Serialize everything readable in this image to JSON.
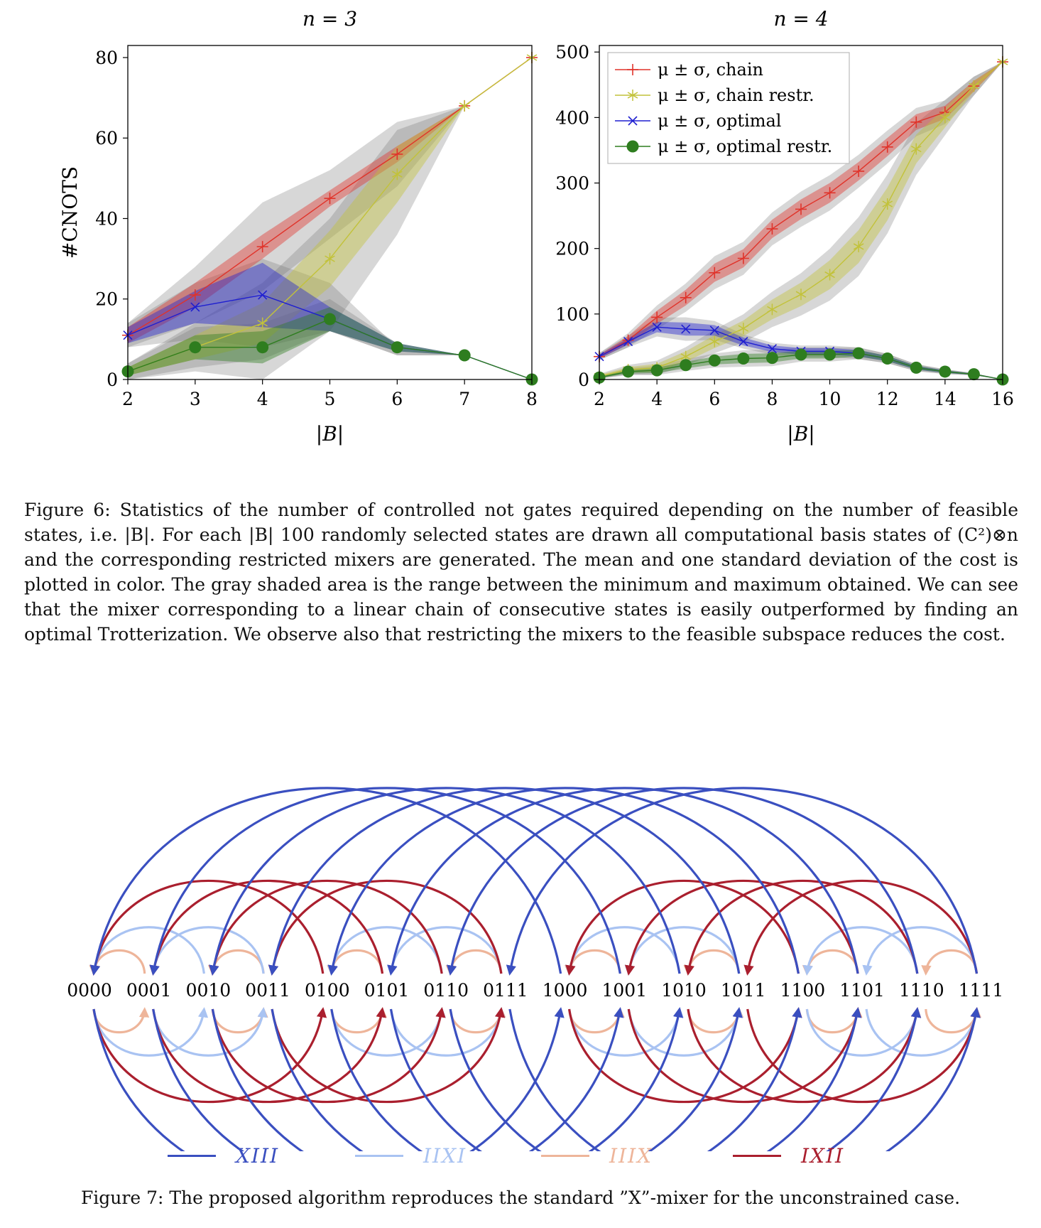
{
  "figure6": {
    "caption": "Figure 6: Statistics of the number of controlled not gates required depending on the number of feasible states, i.e. |B|. For each |B| 100 randomly selected states are drawn all computational basis states of (C²)⊗n and the corresponding restricted mixers are generated. The mean and one standard deviation of the cost is plotted in color. The gray shaded area is the range between the minimum and maximum obtained. We can see that the mixer corresponding to a linear chain of consecutive states is easily outperformed by finding an optimal Trotterization. We observe also that restricting the mixers to the feasible subspace reduces the cost.",
    "legend": [
      {
        "label": "μ ± σ, chain",
        "color": "#e0332a"
      },
      {
        "label": "μ ± σ, chain restr.",
        "color": "#c2c23a"
      },
      {
        "label": "μ ± σ, optimal",
        "color": "#1f1fd0"
      },
      {
        "label": "μ ± σ, optimal restr.",
        "color": "#2e7d1f"
      }
    ]
  },
  "chart_data": [
    {
      "type": "line",
      "title": "n = 3",
      "xlabel": "|B|",
      "ylabel": "#CNOTS",
      "xlim": [
        2,
        8
      ],
      "ylim": [
        0,
        83
      ],
      "xticks": [
        2,
        3,
        4,
        5,
        6,
        7,
        8
      ],
      "yticks": [
        0,
        20,
        40,
        60,
        80
      ],
      "x": [
        2,
        3,
        4,
        5,
        6,
        7,
        8
      ],
      "series": [
        {
          "name": "μ ± σ, chain",
          "values": [
            11,
            21,
            33,
            45,
            56,
            68,
            80
          ],
          "std": [
            2,
            3,
            3,
            2,
            2,
            0,
            0
          ],
          "min": [
            8,
            14,
            22,
            35,
            48,
            68,
            80
          ],
          "max": [
            14,
            28,
            44,
            52,
            64,
            68,
            80
          ]
        },
        {
          "name": "μ ± σ, chain restr.",
          "values": [
            2,
            8,
            14,
            30,
            51,
            68,
            80
          ],
          "std": [
            1,
            3,
            5,
            7,
            7,
            0,
            0
          ],
          "min": [
            0,
            3,
            5,
            12,
            36,
            68,
            80
          ],
          "max": [
            4,
            14,
            24,
            40,
            62,
            68,
            80
          ]
        },
        {
          "name": "μ ± σ, optimal",
          "values": [
            11,
            18,
            21,
            15,
            8,
            6,
            0
          ],
          "std": [
            2,
            4,
            8,
            3,
            1,
            0,
            0
          ],
          "min": [
            8,
            10,
            8,
            12,
            6,
            6,
            0
          ],
          "max": [
            14,
            24,
            30,
            24,
            8,
            6,
            0
          ]
        },
        {
          "name": "μ ± σ, optimal restr.",
          "values": [
            2,
            8,
            8,
            15,
            8,
            6,
            0
          ],
          "std": [
            1,
            3,
            4,
            3,
            1,
            0,
            0
          ],
          "min": [
            0,
            2,
            0,
            12,
            6,
            6,
            0
          ],
          "max": [
            4,
            13,
            14,
            20,
            9,
            6,
            0
          ]
        }
      ]
    },
    {
      "type": "line",
      "title": "n = 4",
      "xlabel": "|B|",
      "ylabel": "",
      "xlim": [
        2,
        16
      ],
      "ylim": [
        0,
        510
      ],
      "xticks": [
        2,
        4,
        6,
        8,
        10,
        12,
        14,
        16
      ],
      "yticks": [
        0,
        100,
        200,
        300,
        400,
        500
      ],
      "legend_position": "top-left",
      "x": [
        2,
        3,
        4,
        5,
        6,
        7,
        8,
        9,
        10,
        11,
        12,
        13,
        14,
        15,
        16
      ],
      "series": [
        {
          "name": "μ ± σ, chain",
          "values": [
            35,
            60,
            95,
            125,
            163,
            185,
            230,
            260,
            285,
            318,
            355,
            393,
            408,
            448,
            485
          ],
          "std": [
            3,
            6,
            10,
            12,
            14,
            14,
            14,
            15,
            15,
            14,
            14,
            12,
            10,
            8,
            0
          ]
        },
        {
          "name": "μ ± σ, chain restr.",
          "values": [
            5,
            15,
            18,
            35,
            58,
            78,
            107,
            130,
            160,
            203,
            268,
            352,
            400,
            448,
            485
          ],
          "std": [
            2,
            4,
            6,
            8,
            10,
            12,
            15,
            18,
            22,
            25,
            25,
            22,
            15,
            8,
            0
          ]
        },
        {
          "name": "μ ± σ, optimal",
          "values": [
            35,
            58,
            80,
            77,
            75,
            58,
            47,
            43,
            43,
            40,
            32,
            18,
            12,
            8,
            0
          ],
          "std": [
            3,
            5,
            8,
            10,
            8,
            6,
            5,
            5,
            5,
            5,
            4,
            3,
            2,
            1,
            0
          ]
        },
        {
          "name": "μ ± σ, optimal restr.",
          "values": [
            3,
            12,
            14,
            22,
            29,
            32,
            33,
            38,
            38,
            40,
            32,
            18,
            12,
            8,
            0
          ],
          "std": [
            1,
            3,
            4,
            5,
            6,
            7,
            7,
            6,
            6,
            5,
            4,
            3,
            2,
            1,
            0
          ]
        }
      ]
    }
  ],
  "figure7": {
    "caption": "Figure 7: The proposed algorithm reproduces the standard ”X”-mixer for the unconstrained case.",
    "states": [
      "0000",
      "0001",
      "0010",
      "0011",
      "0100",
      "0101",
      "0110",
      "0111",
      "1000",
      "1001",
      "1010",
      "1011",
      "1100",
      "1101",
      "1110",
      "1111"
    ],
    "legend": [
      {
        "label": "XIII",
        "color": "#3a4fc0",
        "distance": 8
      },
      {
        "label": "IIXI",
        "color": "#a9c3f2",
        "distance": 2
      },
      {
        "label": "IIIX",
        "color": "#eeb59a",
        "distance": 1
      },
      {
        "label": "IXII",
        "color": "#aa1f2e",
        "distance": 4
      }
    ]
  }
}
